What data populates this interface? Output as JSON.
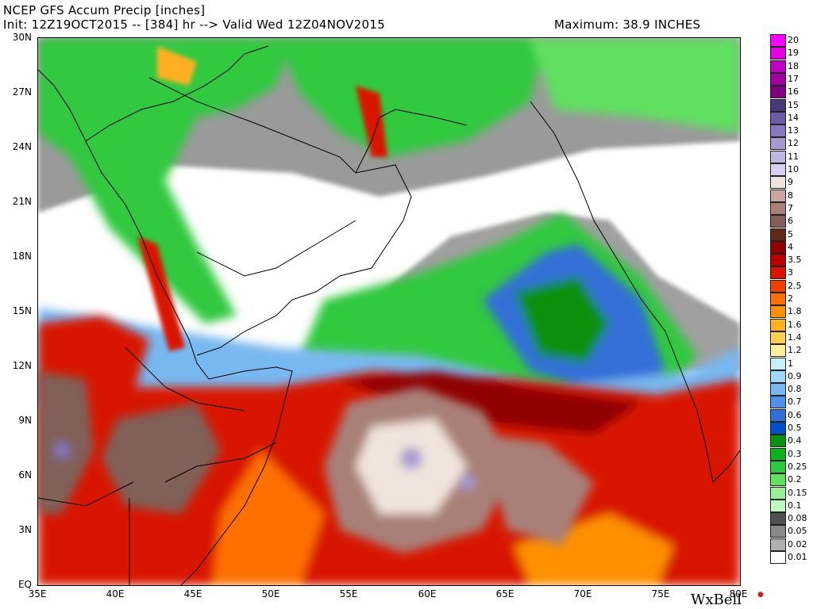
{
  "header": {
    "title": "NCEP GFS Accum Precip [inches]",
    "init": "Init: 12Z19OCT2015 -- [384] hr --> Valid Wed 12Z04NOV2015",
    "maximum": "Maximum: 38.9 INCHES"
  },
  "axes": {
    "lat_labels": [
      "30N",
      "27N",
      "24N",
      "21N",
      "18N",
      "15N",
      "12N",
      "9N",
      "6N",
      "3N",
      "EQ"
    ],
    "lon_labels": [
      "35E",
      "40E",
      "45E",
      "50E",
      "55E",
      "60E",
      "65E",
      "70E",
      "75E",
      "80E"
    ],
    "lat_range": [
      0,
      30
    ],
    "lon_range": [
      35,
      80
    ]
  },
  "legend": {
    "labels": [
      "20",
      "19",
      "18",
      "17",
      "16",
      "15",
      "14",
      "13",
      "12",
      "11",
      "10",
      "9",
      "8",
      "7",
      "6",
      "5",
      "4",
      "3.5",
      "3",
      "2.5",
      "2",
      "1.8",
      "1.6",
      "1.4",
      "1.2",
      "1",
      "0.9",
      "0.8",
      "0.7",
      "0.6",
      "0.5",
      "0.4",
      "0.3",
      "0.25",
      "0.2",
      "0.15",
      "0.1",
      "0.08",
      "0.05",
      "0.02",
      "0.01"
    ],
    "colors": [
      "#ff00ff",
      "#e000e0",
      "#c000c0",
      "#a000a0",
      "#800080",
      "#483878",
      "#6a5aa8",
      "#8878c0",
      "#a898d0",
      "#c0b8e0",
      "#d8d0f0",
      "#f0e4dc",
      "#c8a8a0",
      "#a88078",
      "#806058",
      "#602818",
      "#900000",
      "#b80000",
      "#d81400",
      "#f04000",
      "#ff7000",
      "#ff9000",
      "#ffb020",
      "#ffd050",
      "#fff0a0",
      "#c8f0f8",
      "#a0d8f8",
      "#78b8f0",
      "#5090e8",
      "#3070d8",
      "#0050c8",
      "#089010",
      "#10b020",
      "#30c840",
      "#60e060",
      "#98f098",
      "#c0f8c0",
      "#505050",
      "#888888",
      "#b0b0b0",
      "#ffffff"
    ]
  },
  "branding": {
    "logo_text": "WxBell"
  }
}
